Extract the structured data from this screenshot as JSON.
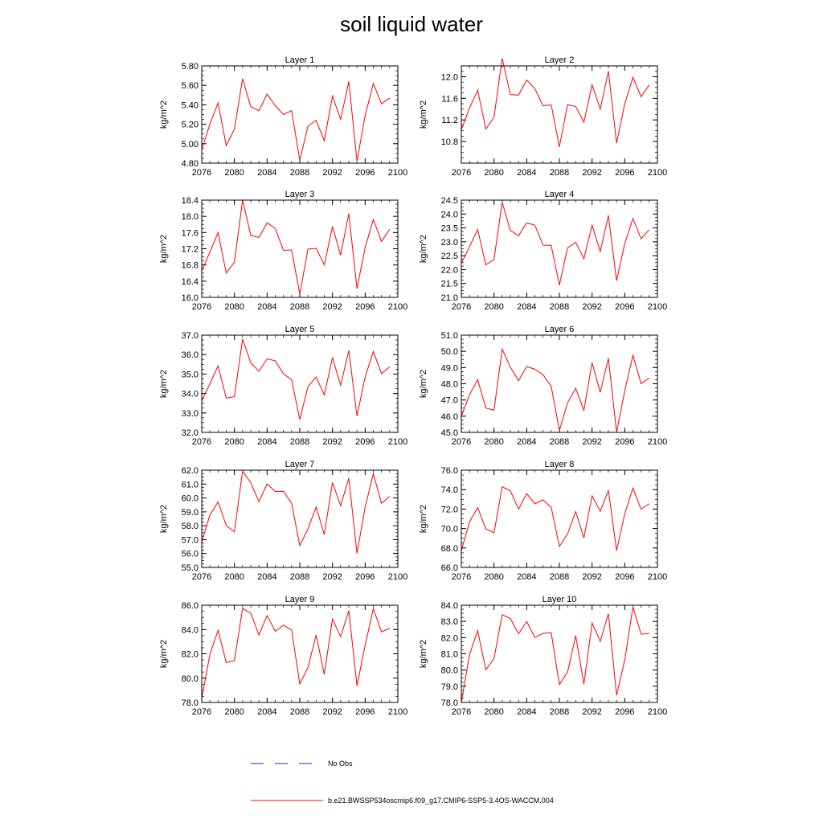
{
  "figure": {
    "title": "soil liquid water",
    "legend": [
      {
        "label": "No Obs",
        "color": "#2b2bbf",
        "style": "dashed"
      },
      {
        "label": "b.e21.BWSSP534oscmip6.f09_g17.CMIP6-SSP5-3.4OS-WACCM.004",
        "color": "#ff0000",
        "style": "solid"
      }
    ]
  },
  "chart_data": [
    {
      "type": "line",
      "title": "Layer 1",
      "ylabel": "kg/m^2",
      "xlim": [
        2076,
        2100
      ],
      "ylim": [
        4.8,
        5.8
      ],
      "xticks": [
        "2076",
        "2080",
        "2084",
        "2088",
        "2092",
        "2096",
        "2100"
      ],
      "yticks": [
        "4.80",
        "5.00",
        "5.20",
        "5.40",
        "5.60",
        "5.80"
      ],
      "x": [
        2076,
        2077,
        2078,
        2079,
        2080,
        2081,
        2082,
        2083,
        2084,
        2085,
        2086,
        2087,
        2088,
        2089,
        2090,
        2091,
        2092,
        2093,
        2094,
        2095,
        2096,
        2097,
        2098,
        2099
      ],
      "series": [
        {
          "color": "#ff0000",
          "values": [
            4.94,
            5.2,
            5.42,
            4.98,
            5.15,
            5.67,
            5.38,
            5.34,
            5.51,
            5.39,
            5.3,
            5.34,
            4.83,
            5.18,
            5.24,
            5.03,
            5.49,
            5.25,
            5.64,
            4.82,
            5.29,
            5.62,
            5.41,
            5.47
          ]
        }
      ]
    },
    {
      "type": "line",
      "title": "Layer 2",
      "ylabel": "kg/m^2",
      "xlim": [
        2076,
        2100
      ],
      "ylim": [
        10.4,
        12.2
      ],
      "xticks": [
        "2076",
        "2080",
        "2084",
        "2088",
        "2092",
        "2096",
        "2100"
      ],
      "yticks": [
        "10.8",
        "11.2",
        "11.6",
        "12.0"
      ],
      "x": [
        2076,
        2077,
        2078,
        2079,
        2080,
        2081,
        2082,
        2083,
        2084,
        2085,
        2086,
        2087,
        2088,
        2089,
        2090,
        2091,
        2092,
        2093,
        2094,
        2095,
        2096,
        2097,
        2098,
        2099
      ],
      "series": [
        {
          "color": "#ff0000",
          "values": [
            11.02,
            11.42,
            11.75,
            11.03,
            11.25,
            12.34,
            11.67,
            11.66,
            11.94,
            11.78,
            11.46,
            11.48,
            10.7,
            11.48,
            11.45,
            11.16,
            11.85,
            11.4,
            12.1,
            10.77,
            11.5,
            11.99,
            11.63,
            11.85
          ]
        }
      ]
    },
    {
      "type": "line",
      "title": "Layer 3",
      "ylabel": "kg/m^2",
      "xlim": [
        2076,
        2100
      ],
      "ylim": [
        16.0,
        18.4
      ],
      "xticks": [
        "2076",
        "2080",
        "2084",
        "2088",
        "2092",
        "2096",
        "2100"
      ],
      "yticks": [
        "16.0",
        "16.4",
        "16.8",
        "17.2",
        "17.6",
        "18.0",
        "18.4"
      ],
      "x": [
        2076,
        2077,
        2078,
        2079,
        2080,
        2081,
        2082,
        2083,
        2084,
        2085,
        2086,
        2087,
        2088,
        2089,
        2090,
        2091,
        2092,
        2093,
        2094,
        2095,
        2096,
        2097,
        2098,
        2099
      ],
      "series": [
        {
          "color": "#ff0000",
          "values": [
            16.65,
            17.12,
            17.6,
            16.6,
            16.87,
            18.4,
            17.53,
            17.48,
            17.84,
            17.7,
            17.16,
            17.17,
            16.08,
            17.19,
            17.21,
            16.8,
            17.75,
            17.04,
            18.07,
            16.22,
            17.23,
            17.92,
            17.38,
            17.68
          ]
        }
      ]
    },
    {
      "type": "line",
      "title": "Layer 4",
      "ylabel": "kg/m^2",
      "xlim": [
        2076,
        2100
      ],
      "ylim": [
        21.0,
        24.5
      ],
      "xticks": [
        "2076",
        "2080",
        "2084",
        "2088",
        "2092",
        "2096",
        "2100"
      ],
      "yticks": [
        "21.0",
        "21.5",
        "22.0",
        "22.5",
        "23.0",
        "23.5",
        "24.0",
        "24.5"
      ],
      "x": [
        2076,
        2077,
        2078,
        2079,
        2080,
        2081,
        2082,
        2083,
        2084,
        2085,
        2086,
        2087,
        2088,
        2089,
        2090,
        2091,
        2092,
        2093,
        2094,
        2095,
        2096,
        2097,
        2098,
        2099
      ],
      "series": [
        {
          "color": "#ff0000",
          "values": [
            22.22,
            22.82,
            23.44,
            22.17,
            22.37,
            24.42,
            23.41,
            23.22,
            23.68,
            23.6,
            22.88,
            22.87,
            21.44,
            22.78,
            22.98,
            22.39,
            23.6,
            22.65,
            23.95,
            21.6,
            22.93,
            23.84,
            23.11,
            23.44
          ]
        }
      ]
    },
    {
      "type": "line",
      "title": "Layer 5",
      "ylabel": "kg/m^2",
      "xlim": [
        2076,
        2100
      ],
      "ylim": [
        32.0,
        37.0
      ],
      "xticks": [
        "2076",
        "2080",
        "2084",
        "2088",
        "2092",
        "2096",
        "2100"
      ],
      "yticks": [
        "32.0",
        "33.0",
        "34.0",
        "35.0",
        "36.0",
        "37.0"
      ],
      "x": [
        2076,
        2077,
        2078,
        2079,
        2080,
        2081,
        2082,
        2083,
        2084,
        2085,
        2086,
        2087,
        2088,
        2089,
        2090,
        2091,
        2092,
        2093,
        2094,
        2095,
        2096,
        2097,
        2098,
        2099
      ],
      "series": [
        {
          "color": "#ff0000",
          "values": [
            33.62,
            34.5,
            35.42,
            33.76,
            33.84,
            36.8,
            35.58,
            35.14,
            35.78,
            35.68,
            35.01,
            34.71,
            32.67,
            34.35,
            34.85,
            33.93,
            35.85,
            34.42,
            36.21,
            32.84,
            34.85,
            36.16,
            35.02,
            35.37
          ]
        }
      ]
    },
    {
      "type": "line",
      "title": "Layer 6",
      "ylabel": "kg/m^2",
      "xlim": [
        2076,
        2100
      ],
      "ylim": [
        45.0,
        51.0
      ],
      "xticks": [
        "2076",
        "2080",
        "2084",
        "2088",
        "2092",
        "2096",
        "2100"
      ],
      "yticks": [
        "45.0",
        "46.0",
        "47.0",
        "48.0",
        "49.0",
        "50.0",
        "51.0"
      ],
      "x": [
        2076,
        2077,
        2078,
        2079,
        2080,
        2081,
        2082,
        2083,
        2084,
        2085,
        2086,
        2087,
        2088,
        2089,
        2090,
        2091,
        2092,
        2093,
        2094,
        2095,
        2096,
        2097,
        2098,
        2099
      ],
      "series": [
        {
          "color": "#ff0000",
          "values": [
            45.99,
            47.32,
            48.26,
            46.5,
            46.37,
            50.14,
            49.02,
            48.19,
            49.06,
            48.9,
            48.56,
            47.84,
            45.12,
            46.82,
            47.72,
            46.36,
            49.31,
            47.47,
            49.58,
            45.0,
            47.57,
            49.76,
            48.01,
            48.36
          ]
        }
      ]
    },
    {
      "type": "line",
      "title": "Layer 7",
      "ylabel": "kg/m^2",
      "xlim": [
        2076,
        2100
      ],
      "ylim": [
        55.0,
        62.0
      ],
      "xticks": [
        "2076",
        "2080",
        "2084",
        "2088",
        "2092",
        "2096",
        "2100"
      ],
      "yticks": [
        "55.0",
        "56.0",
        "57.0",
        "58.0",
        "59.0",
        "60.0",
        "61.0",
        "62.0"
      ],
      "x": [
        2076,
        2077,
        2078,
        2079,
        2080,
        2081,
        2082,
        2083,
        2084,
        2085,
        2086,
        2087,
        2088,
        2089,
        2090,
        2091,
        2092,
        2093,
        2094,
        2095,
        2096,
        2097,
        2098,
        2099
      ],
      "series": [
        {
          "color": "#ff0000",
          "values": [
            56.82,
            58.77,
            59.72,
            58.02,
            57.56,
            61.93,
            61.1,
            59.73,
            61.01,
            60.47,
            60.48,
            59.61,
            56.58,
            57.77,
            59.35,
            57.36,
            61.11,
            59.45,
            61.42,
            56.01,
            59.34,
            61.75,
            59.61,
            60.11
          ]
        }
      ]
    },
    {
      "type": "line",
      "title": "Layer 8",
      "ylabel": "kg/m^2",
      "xlim": [
        2076,
        2100
      ],
      "ylim": [
        66.0,
        76.0
      ],
      "xticks": [
        "2076",
        "2080",
        "2084",
        "2088",
        "2092",
        "2096",
        "2100"
      ],
      "yticks": [
        "66.0",
        "68.0",
        "70.0",
        "72.0",
        "74.0",
        "76.0"
      ],
      "x": [
        2076,
        2077,
        2078,
        2079,
        2080,
        2081,
        2082,
        2083,
        2084,
        2085,
        2086,
        2087,
        2088,
        2089,
        2090,
        2091,
        2092,
        2093,
        2094,
        2095,
        2096,
        2097,
        2098,
        2099
      ],
      "series": [
        {
          "color": "#ff0000",
          "values": [
            67.71,
            70.67,
            72.16,
            69.97,
            69.56,
            74.3,
            73.87,
            71.99,
            73.59,
            72.53,
            72.95,
            72.18,
            68.16,
            69.45,
            71.74,
            69.04,
            73.37,
            71.76,
            73.93,
            67.72,
            71.5,
            74.17,
            71.98,
            72.55
          ]
        }
      ]
    },
    {
      "type": "line",
      "title": "Layer 9",
      "ylabel": "kg/m^2",
      "xlim": [
        2076,
        2100
      ],
      "ylim": [
        78.0,
        86.0
      ],
      "xticks": [
        "2076",
        "2080",
        "2084",
        "2088",
        "2092",
        "2096",
        "2100"
      ],
      "yticks": [
        "78.0",
        "80.0",
        "82.0",
        "84.0",
        "86.0"
      ],
      "x": [
        2076,
        2077,
        2078,
        2079,
        2080,
        2081,
        2082,
        2083,
        2084,
        2085,
        2086,
        2087,
        2088,
        2089,
        2090,
        2091,
        2092,
        2093,
        2094,
        2095,
        2096,
        2097,
        2098,
        2099
      ],
      "series": [
        {
          "color": "#ff0000",
          "values": [
            78.32,
            81.94,
            83.94,
            81.28,
            81.45,
            85.73,
            85.34,
            83.56,
            85.15,
            83.86,
            84.35,
            83.96,
            79.53,
            80.87,
            83.56,
            80.3,
            84.86,
            83.41,
            85.55,
            79.37,
            82.7,
            85.71,
            83.81,
            84.1
          ]
        }
      ]
    },
    {
      "type": "line",
      "title": "Layer 10",
      "ylabel": "kg/m^2",
      "xlim": [
        2076,
        2100
      ],
      "ylim": [
        78.0,
        84.0
      ],
      "xticks": [
        "2076",
        "2080",
        "2084",
        "2088",
        "2092",
        "2096",
        "2100"
      ],
      "yticks": [
        "78.0",
        "79.0",
        "80.0",
        "81.0",
        "82.0",
        "83.0",
        "84.0"
      ],
      "x": [
        2076,
        2077,
        2078,
        2079,
        2080,
        2081,
        2082,
        2083,
        2084,
        2085,
        2086,
        2087,
        2088,
        2089,
        2090,
        2091,
        2092,
        2093,
        2094,
        2095,
        2096,
        2097,
        2098,
        2099
      ],
      "series": [
        {
          "color": "#ff0000",
          "values": [
            78.0,
            80.95,
            82.43,
            80.01,
            80.71,
            83.41,
            83.18,
            82.24,
            82.99,
            82.01,
            82.26,
            82.3,
            79.11,
            79.87,
            82.12,
            79.13,
            82.9,
            81.77,
            83.48,
            78.44,
            80.62,
            83.89,
            82.21,
            82.25
          ]
        }
      ]
    }
  ]
}
